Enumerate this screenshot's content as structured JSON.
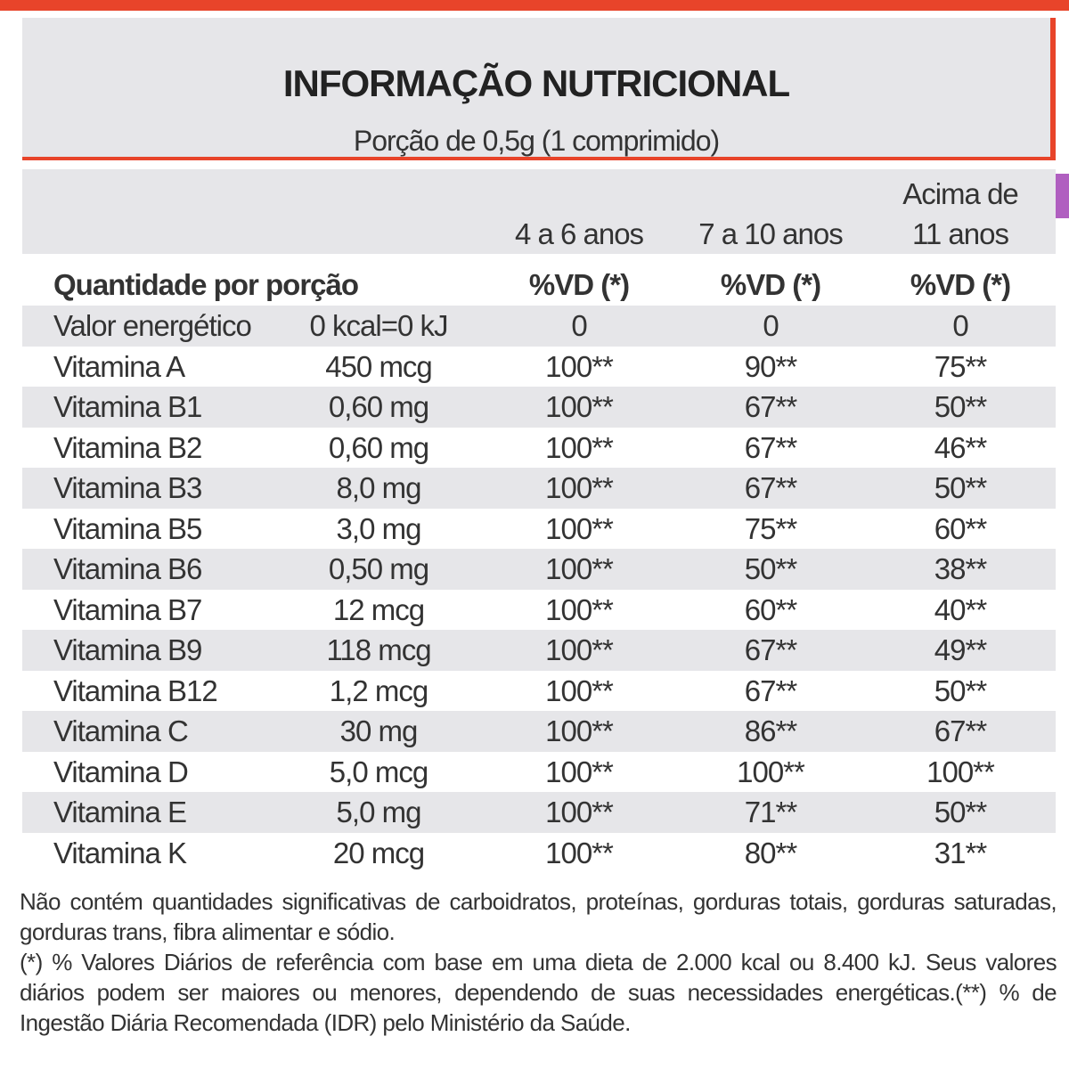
{
  "header": {
    "title": "INFORMAÇÃO NUTRICIONAL",
    "subtitle": "Porção de 0,5g (1 comprimido)"
  },
  "table": {
    "age_groups": [
      "4 a 6 anos",
      "7 a 10 anos",
      "Acima de 11 anos"
    ],
    "header": [
      "Quantidade por porção",
      "%VD (*)",
      "%VD (*)",
      "%VD (*)"
    ],
    "rows": [
      [
        "Valor energético",
        "0 kcal=0 kJ",
        "0",
        "0",
        "0"
      ],
      [
        "Vitamina A",
        "450 mcg",
        "100**",
        "90**",
        "75**"
      ],
      [
        "Vitamina B1",
        "0,60 mg",
        "100**",
        "67**",
        "50**"
      ],
      [
        "Vitamina B2",
        "0,60 mg",
        "100**",
        "67**",
        "46**"
      ],
      [
        "Vitamina B3",
        "8,0 mg",
        "100**",
        "67**",
        "50**"
      ],
      [
        "Vitamina B5",
        "3,0 mg",
        "100**",
        "75**",
        "60**"
      ],
      [
        "Vitamina B6",
        "0,50 mg",
        "100**",
        "50**",
        "38**"
      ],
      [
        "Vitamina B7",
        "12 mcg",
        "100**",
        "60**",
        "40**"
      ],
      [
        "Vitamina B9",
        "118 mcg",
        "100**",
        "67**",
        "49**"
      ],
      [
        "Vitamina B12",
        "1,2 mcg",
        "100**",
        "67**",
        "50**"
      ],
      [
        "Vitamina C",
        "30 mg",
        "100**",
        "86**",
        "67**"
      ],
      [
        "Vitamina D",
        "5,0 mcg",
        "100**",
        "100**",
        "100**"
      ],
      [
        "Vitamina E",
        "5,0 mg",
        "100**",
        "71**",
        "50**"
      ],
      [
        "Vitamina K",
        "20 mcg",
        "100**",
        "80**",
        "31**"
      ]
    ]
  },
  "footer": {
    "notes": [
      "Não contém quantidades significativas de carboidratos, proteínas, gorduras totais, gorduras saturadas, gorduras trans, fibra alimentar e sódio.",
      "(*) % Valores Diários de referência com base em uma dieta de 2.000 kcal ou 8.400 kJ. Seus valores diários podem ser maiores ou menores, dependendo de suas necessidades energéticas.(**) % de Ingestão Diária Recomendada (IDR) pelo Ministério da Saúde."
    ]
  }
}
